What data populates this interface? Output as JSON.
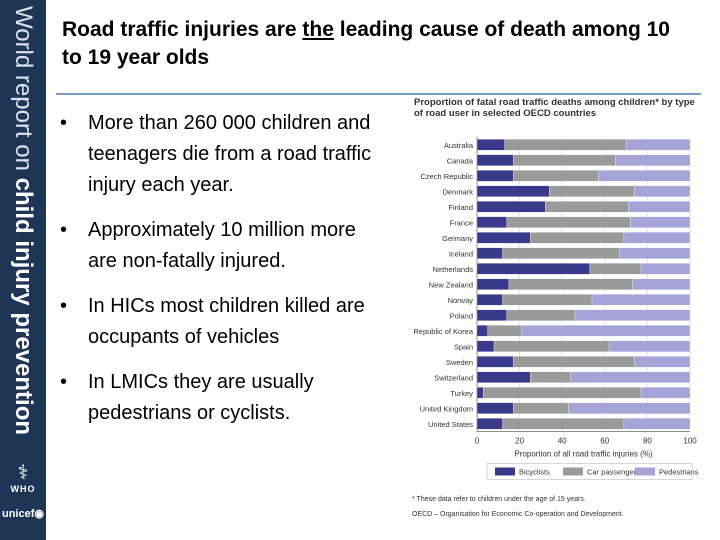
{
  "sidebar": {
    "title_light": "World report on ",
    "title_bold": "child injury prevention",
    "who_label": "WHO",
    "unicef_label": "unicef"
  },
  "slide": {
    "title_part1": "Road traffic injuries are ",
    "title_emph": "the",
    "title_part2": " leading cause of death among 10 to 19 year olds",
    "bullets": [
      "More than 260 000 children and teenagers die from a road traffic injury each year.",
      "Approximately 10 million more are non-fatally injured.",
      "In HICs most children killed are occupants of vehicles",
      "In LMICs they are usually pedestrians or cyclists."
    ]
  },
  "chart_data": {
    "type": "bar",
    "orientation": "horizontal-stacked",
    "title": "Proportion of fatal road traffic deaths among children* by type of road user in selected OECD countries",
    "xlabel": "Proportion of all road traffic injuries (%)",
    "xlim": [
      0,
      100
    ],
    "xticks": [
      0,
      20,
      40,
      60,
      80,
      100
    ],
    "categories": [
      "Australia",
      "Canada",
      "Czech Republic",
      "Denmark",
      "Finland",
      "France",
      "Germany",
      "Iceland",
      "Netherlands",
      "New Zealand",
      "Norway",
      "Poland",
      "Republic of Korea",
      "Spain",
      "Sweden",
      "Switzerland",
      "Turkey",
      "United Kingdom",
      "United States"
    ],
    "series": [
      {
        "name": "Bicyclists",
        "color": "#3a3a8c",
        "values": [
          13,
          17,
          17,
          34,
          32,
          14,
          25,
          12,
          53,
          15,
          12,
          14,
          5,
          8,
          17,
          25,
          3,
          17,
          12
        ]
      },
      {
        "name": "Car passengers",
        "color": "#9a9a9a",
        "values": [
          57,
          48,
          40,
          40,
          39,
          58,
          44,
          55,
          24,
          58,
          42,
          32,
          16,
          54,
          57,
          19,
          74,
          26,
          57
        ]
      },
      {
        "name": "Pedestrians",
        "color": "#a4a4d8",
        "values": [
          30,
          35,
          43,
          26,
          29,
          28,
          31,
          33,
          23,
          27,
          46,
          54,
          79,
          38,
          26,
          56,
          23,
          57,
          31
        ]
      }
    ],
    "footnotes": [
      "These data refer to children under the age of 15 years.",
      "OECD – Organisation for Economic Co-operation and Development."
    ]
  }
}
